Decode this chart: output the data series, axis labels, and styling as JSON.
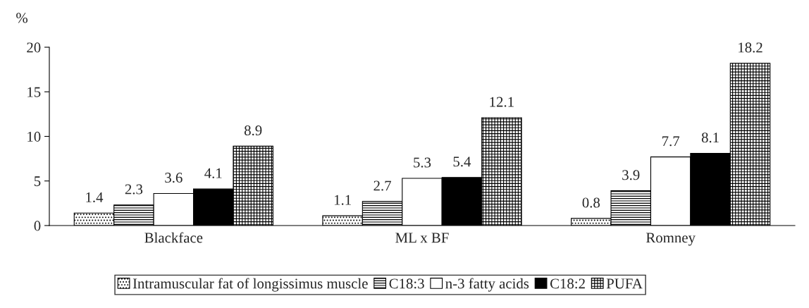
{
  "chart_data": {
    "type": "bar",
    "ylabel": "%",
    "categories": [
      "Blackface",
      "ML x BF",
      "Romney"
    ],
    "series": [
      {
        "name": "Intramuscular fat of longissimus muscle",
        "color": "#000000",
        "values": [
          1.4,
          1.1,
          0.8
        ]
      },
      {
        "name": "C18:3",
        "color": "#000000",
        "values": [
          2.3,
          2.7,
          3.9
        ]
      },
      {
        "name": "n-3 fatty acids",
        "color": "#ffffff",
        "values": [
          3.6,
          5.3,
          7.7
        ]
      },
      {
        "name": "C18:2",
        "color": "#000000",
        "values": [
          4.1,
          5.4,
          8.1
        ]
      },
      {
        "name": "PUFA",
        "color": "#000000",
        "values": [
          8.9,
          12.1,
          18.2
        ]
      }
    ],
    "ylim": [
      0,
      20
    ],
    "yticks": [
      0,
      5,
      10,
      15,
      20
    ],
    "grid": false,
    "legend": "bottom",
    "data_labels": true
  }
}
